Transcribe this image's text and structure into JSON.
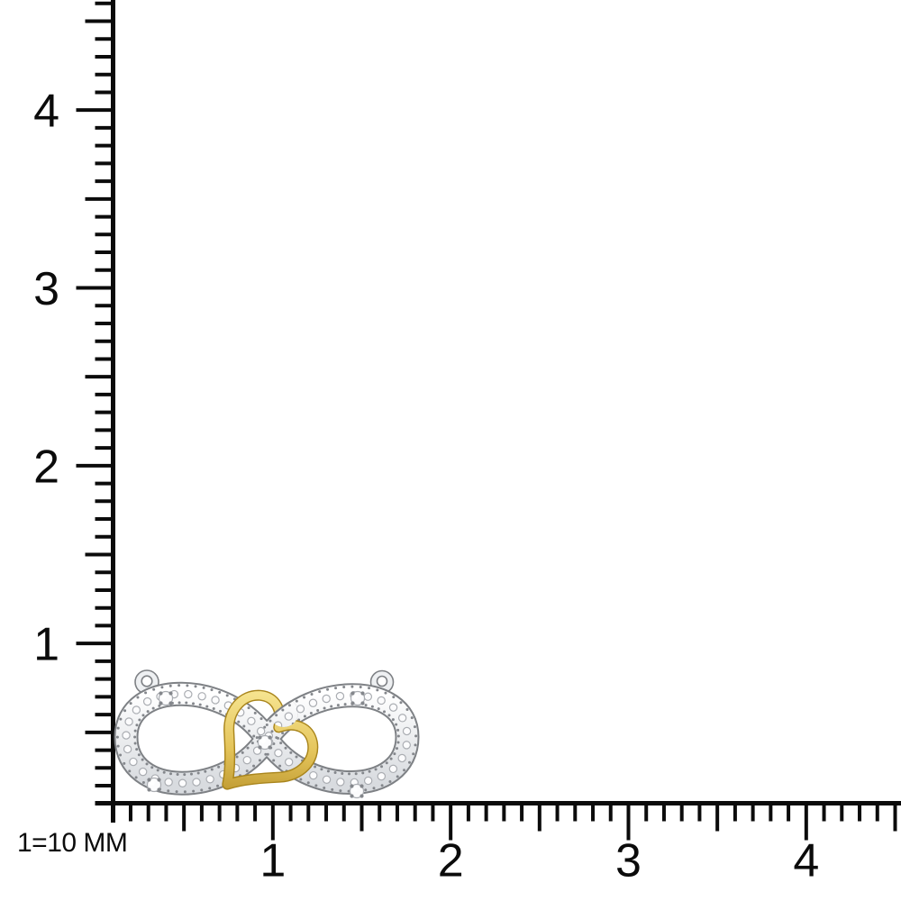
{
  "scale_note": "1=10 MM",
  "rulers": {
    "vertical": {
      "labels": [
        "1",
        "2",
        "3",
        "4"
      ],
      "visible_range": [
        0.2,
        4.6
      ],
      "minor_per_unit": 10
    },
    "horizontal": {
      "labels": [
        "1",
        "2",
        "3",
        "4"
      ],
      "visible_range": [
        0.2,
        4.5
      ],
      "minor_per_unit": 10
    }
  },
  "pendant": {
    "name": "two-tone infinity heart pendant",
    "band": "white-gold infinity loops with pave diamonds and milgrain edges",
    "accent": "yellow-gold open heart interlocked at center",
    "bails": 2,
    "colors": {
      "gold_light": "#f8e896",
      "gold": "#e4c45a",
      "gold_dark": "#b8922a",
      "silver": "#f4f5f7",
      "silver_shade": "#d8dbdf",
      "silver_edge": "#7e8185",
      "milgrain": "#84878c",
      "diamond": "#fcfcfd",
      "diamond_edge": "#aaadb2",
      "ink": "#0b0b0b"
    }
  }
}
